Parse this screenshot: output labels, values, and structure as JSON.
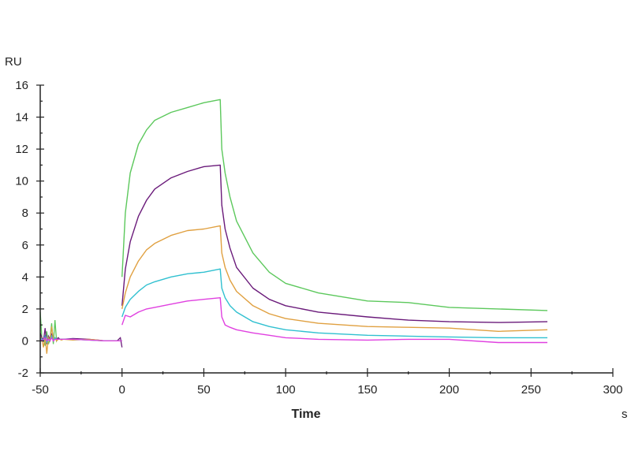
{
  "chart_data": {
    "type": "line",
    "title": "",
    "xlabel": "Time",
    "xunit": "s",
    "ylabel": "RU",
    "xlim": [
      -50,
      300
    ],
    "ylim": [
      -2,
      16
    ],
    "xticks": [
      -50,
      0,
      50,
      100,
      150,
      200,
      250,
      300
    ],
    "yticks": [
      -2,
      0,
      2,
      4,
      6,
      8,
      10,
      12,
      14,
      16
    ],
    "grid": false,
    "legend": "none",
    "baseline_x": [
      -50,
      -49,
      -48,
      -47,
      -46,
      -45,
      -44,
      -43,
      -42,
      -41,
      -40,
      -39,
      -38,
      -37,
      -36,
      -30,
      -20,
      -10,
      -3,
      -1,
      0
    ],
    "x": [
      0,
      2,
      5,
      10,
      15,
      20,
      30,
      40,
      50,
      60,
      61,
      63,
      66,
      70,
      80,
      90,
      100,
      120,
      150,
      175,
      200,
      230,
      260
    ],
    "series": [
      {
        "color": "#5cc85c",
        "baseline": [
          1.8,
          0.2,
          0.1,
          -0.3,
          0.6,
          -0.2,
          0.1,
          1.1,
          -0.2,
          1.3,
          0.0,
          0.2,
          0.1,
          0.1,
          0.1,
          0.1,
          0.05,
          0.0,
          0.0,
          0.0,
          0.0
        ],
        "values": [
          4.0,
          8.0,
          10.5,
          12.3,
          13.2,
          13.8,
          14.3,
          14.6,
          14.9,
          15.1,
          12.0,
          10.5,
          9.0,
          7.5,
          5.5,
          4.3,
          3.6,
          3.0,
          2.5,
          2.4,
          2.1,
          2.0,
          1.9
        ]
      },
      {
        "color": "#6a1a7a",
        "baseline": [
          0.5,
          0.2,
          0.0,
          0.8,
          -0.2,
          0.3,
          0.1,
          0.4,
          0.0,
          0.2,
          0.1,
          0.2,
          0.1,
          0.1,
          0.1,
          0.15,
          0.1,
          0.0,
          0.0,
          0.2,
          -0.4
        ],
        "values": [
          2.2,
          4.5,
          6.2,
          7.8,
          8.8,
          9.5,
          10.2,
          10.6,
          10.9,
          11.0,
          8.5,
          7.0,
          5.8,
          4.6,
          3.3,
          2.6,
          2.2,
          1.8,
          1.5,
          1.3,
          1.2,
          1.15,
          1.2
        ]
      },
      {
        "color": "#e0a040",
        "baseline": [
          0.3,
          0.1,
          -0.4,
          0.3,
          -0.8,
          0.2,
          0.0,
          0.9,
          0.1,
          0.2,
          0.0,
          0.1,
          0.1,
          0.05,
          0.1,
          0.05,
          0.1,
          0.0,
          0.0,
          0.0,
          0.0
        ],
        "values": [
          2.0,
          3.0,
          4.0,
          5.0,
          5.7,
          6.1,
          6.6,
          6.9,
          7.0,
          7.2,
          5.5,
          4.6,
          3.8,
          3.1,
          2.2,
          1.7,
          1.4,
          1.1,
          0.9,
          0.85,
          0.8,
          0.6,
          0.7
        ]
      },
      {
        "color": "#30c0d0",
        "baseline": [
          0.2,
          0.1,
          0.0,
          0.3,
          -0.1,
          0.1,
          0.0,
          0.3,
          0.0,
          0.2,
          0.1,
          0.1,
          0.1,
          0.1,
          0.1,
          0.1,
          0.05,
          0.0,
          0.0,
          0.0,
          0.0
        ],
        "values": [
          1.5,
          2.1,
          2.6,
          3.1,
          3.5,
          3.7,
          4.0,
          4.2,
          4.3,
          4.5,
          3.3,
          2.7,
          2.2,
          1.8,
          1.2,
          0.9,
          0.7,
          0.5,
          0.35,
          0.3,
          0.25,
          0.2,
          0.2
        ]
      },
      {
        "color": "#e040e0",
        "baseline": [
          0.1,
          0.0,
          0.1,
          0.2,
          0.0,
          0.1,
          0.0,
          0.2,
          0.0,
          0.1,
          0.1,
          0.1,
          0.1,
          0.1,
          0.1,
          0.1,
          0.05,
          0.0,
          0.0,
          0.0,
          0.0
        ],
        "values": [
          1.0,
          1.6,
          1.5,
          1.8,
          2.0,
          2.1,
          2.3,
          2.5,
          2.6,
          2.7,
          1.5,
          1.0,
          0.85,
          0.7,
          0.5,
          0.35,
          0.2,
          0.1,
          0.05,
          0.1,
          0.1,
          -0.1,
          -0.1
        ]
      }
    ]
  }
}
